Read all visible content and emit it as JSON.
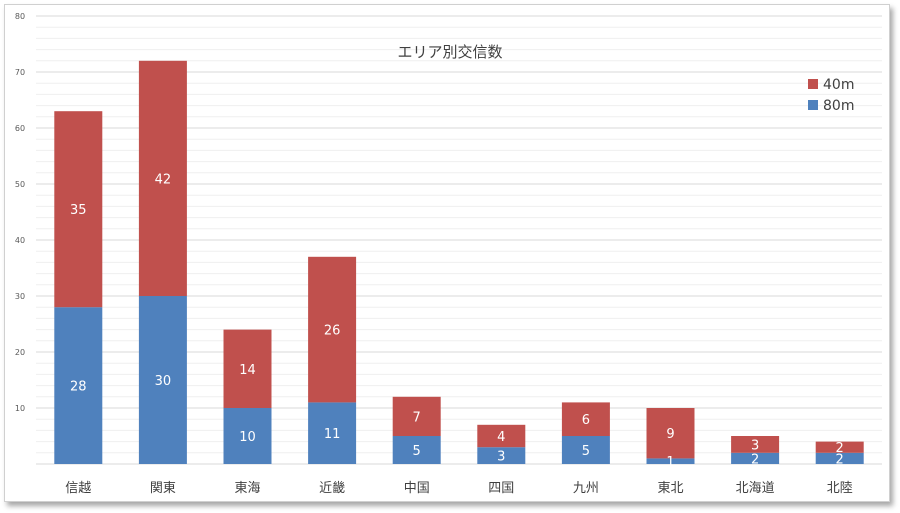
{
  "chart_data": {
    "type": "bar",
    "stacked": true,
    "title": "エリア別交信数",
    "categories": [
      "信越",
      "関東",
      "東海",
      "近畿",
      "中国",
      "四国",
      "九州",
      "東北",
      "北海道",
      "北陸"
    ],
    "series": [
      {
        "name": "80m",
        "color": "#4f81bd",
        "values": [
          28,
          30,
          10,
          11,
          5,
          3,
          5,
          1,
          2,
          2
        ]
      },
      {
        "name": "40m",
        "color": "#c0504d",
        "values": [
          35,
          42,
          14,
          26,
          7,
          4,
          6,
          9,
          3,
          2
        ]
      }
    ],
    "ylim": [
      0,
      80
    ],
    "yticks": [
      10,
      20,
      30,
      40,
      50,
      60,
      70,
      80
    ],
    "grid": true,
    "legend_position": "top-right",
    "data_labels": true
  }
}
